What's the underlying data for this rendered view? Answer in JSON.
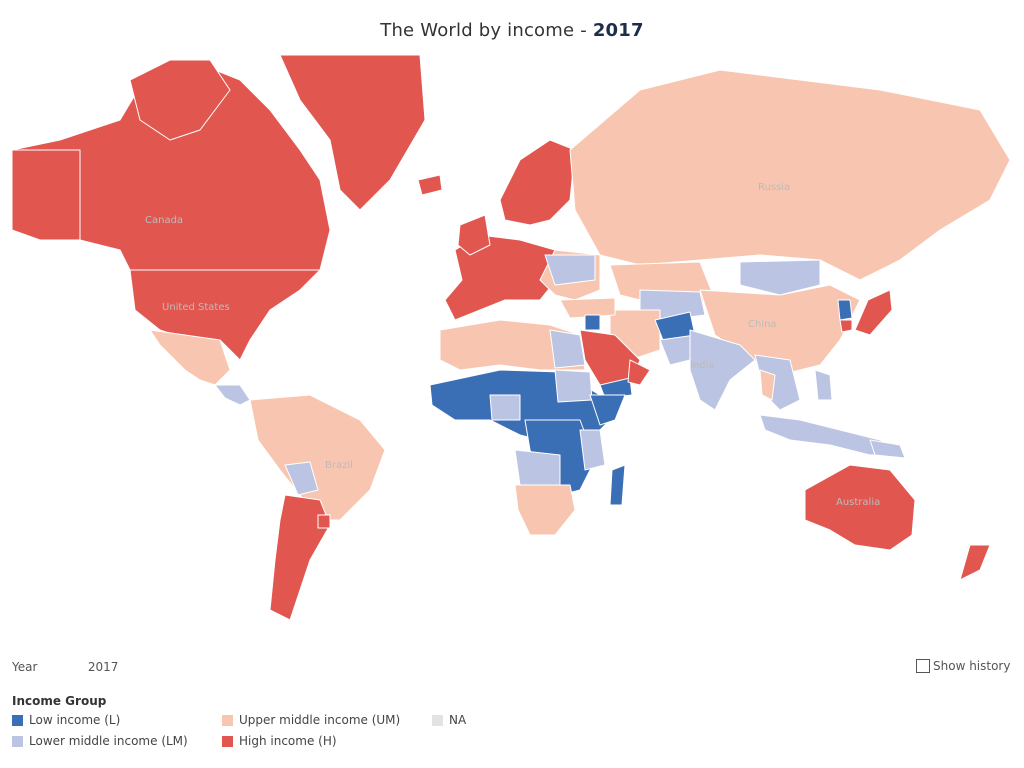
{
  "title": {
    "prefix": "The World by income - ",
    "year": "2017"
  },
  "controls": {
    "year_label": "Year",
    "year_value": "2017",
    "show_history": "Show history"
  },
  "legend": {
    "title": "Income Group",
    "items": [
      {
        "key": "L",
        "label": "Low income (L)",
        "color": "#3a6fb5"
      },
      {
        "key": "UM",
        "label": "Upper middle income (UM)",
        "color": "#f8c6b0"
      },
      {
        "key": "NA",
        "label": "NA",
        "color": "#e3e3e3"
      },
      {
        "key": "LM",
        "label": "Lower middle income (LM)",
        "color": "#bcc4e3"
      },
      {
        "key": "H",
        "label": "High income (H)",
        "color": "#e15750"
      }
    ]
  },
  "map_labels": {
    "canada": "Canada",
    "united_states": "United States",
    "russia": "Russia",
    "china": "China",
    "india": "India",
    "brazil": "Brazil",
    "australia": "Australia"
  }
}
